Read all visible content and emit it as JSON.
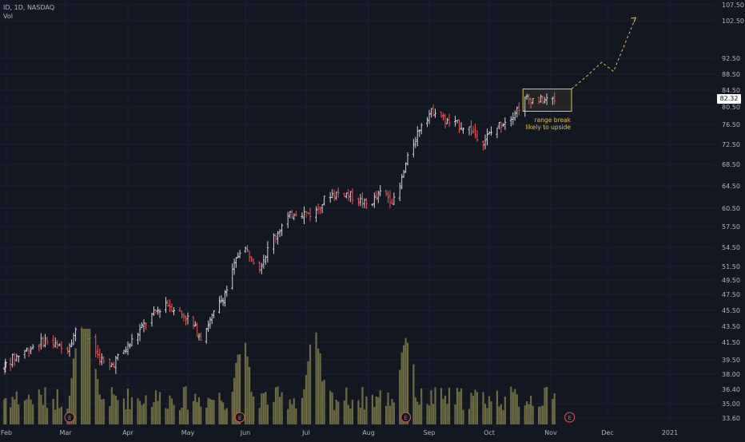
{
  "header": {
    "symbol_line": "ID, 1D, NASDAQ",
    "volume_line": "Vol"
  },
  "last_price_label": "82.32",
  "annotation": {
    "line1": "range break",
    "line2": "likely to upside"
  },
  "earnings_marker_label": "E",
  "colors": {
    "background": "#131722",
    "up": "#d1d4dc",
    "down": "#ef5350",
    "volume": "#6b6b3f",
    "range_box": "#e0c24a",
    "earnings": "#ef5350"
  },
  "chart_data": {
    "type": "bar",
    "title": "",
    "xlabel": "",
    "ylabel": "",
    "x_ticks": [
      "Feb",
      "Mar",
      "Apr",
      "May",
      "Jun",
      "Jul",
      "Aug",
      "Sep",
      "Oct",
      "Nov",
      "Dec",
      "2021"
    ],
    "y_ticks": [
      "107.50",
      "102.50",
      "92.50",
      "88.50",
      "84.50",
      "80.50",
      "76.50",
      "72.50",
      "68.50",
      "64.50",
      "60.50",
      "57.50",
      "54.50",
      "51.50",
      "49.50",
      "47.50",
      "45.50",
      "43.50",
      "41.50",
      "39.50",
      "38.00",
      "36.40",
      "35.00",
      "33.60"
    ],
    "ylim": [
      33.6,
      107.5
    ],
    "last_price": 82.32,
    "price_path": [
      [
        "2020-01-28",
        38.6
      ],
      [
        "2020-02-10",
        40.5
      ],
      [
        "2020-02-20",
        41.8
      ],
      [
        "2020-03-01",
        40.5
      ],
      [
        "2020-03-08",
        43.8
      ],
      [
        "2020-03-15",
        40.7
      ],
      [
        "2020-03-22",
        38.5
      ],
      [
        "2020-04-01",
        41.0
      ],
      [
        "2020-04-10",
        44.0
      ],
      [
        "2020-04-20",
        46.5
      ],
      [
        "2020-05-01",
        44.5
      ],
      [
        "2020-05-08",
        42.2
      ],
      [
        "2020-05-15",
        45.0
      ],
      [
        "2020-05-22",
        48.2
      ],
      [
        "2020-05-30",
        55.0
      ],
      [
        "2020-06-08",
        51.5
      ],
      [
        "2020-06-15",
        56.0
      ],
      [
        "2020-06-25",
        60.0
      ],
      [
        "2020-07-05",
        59.5
      ],
      [
        "2020-07-12",
        63.0
      ],
      [
        "2020-07-20",
        63.3
      ],
      [
        "2020-08-01",
        61.0
      ],
      [
        "2020-08-08",
        63.5
      ],
      [
        "2020-08-15",
        61.5
      ],
      [
        "2020-08-20",
        68.5
      ],
      [
        "2020-08-29",
        78.0
      ],
      [
        "2020-09-04",
        79.8
      ],
      [
        "2020-09-10",
        77.0
      ],
      [
        "2020-09-20",
        76.0
      ],
      [
        "2020-09-28",
        73.2
      ],
      [
        "2020-10-05",
        76.0
      ],
      [
        "2020-10-12",
        78.5
      ],
      [
        "2020-10-20",
        82.5
      ],
      [
        "2020-10-28",
        82.0
      ],
      [
        "2020-11-03",
        82.3
      ]
    ],
    "volume_peaks": [
      [
        "2020-03-08",
        "high"
      ],
      [
        "2020-03-12",
        "high"
      ],
      [
        "2020-05-30",
        "high"
      ],
      [
        "2020-07-05",
        "high"
      ],
      [
        "2020-08-20",
        "high"
      ]
    ],
    "earnings_dates": [
      "2020-03-03",
      "2020-05-29",
      "2020-08-20",
      "2020-11-11"
    ],
    "range_box": {
      "x_start": "2020-10-18",
      "x_end": "2020-11-12",
      "y_low": 79.5,
      "y_high": 84.8
    },
    "projection": [
      [
        "2020-11-12",
        84.8
      ],
      [
        "2020-11-20",
        88.0
      ],
      [
        "2020-11-28",
        91.5
      ],
      [
        "2020-12-04",
        89.2
      ],
      [
        "2020-12-15",
        103.5
      ]
    ]
  }
}
